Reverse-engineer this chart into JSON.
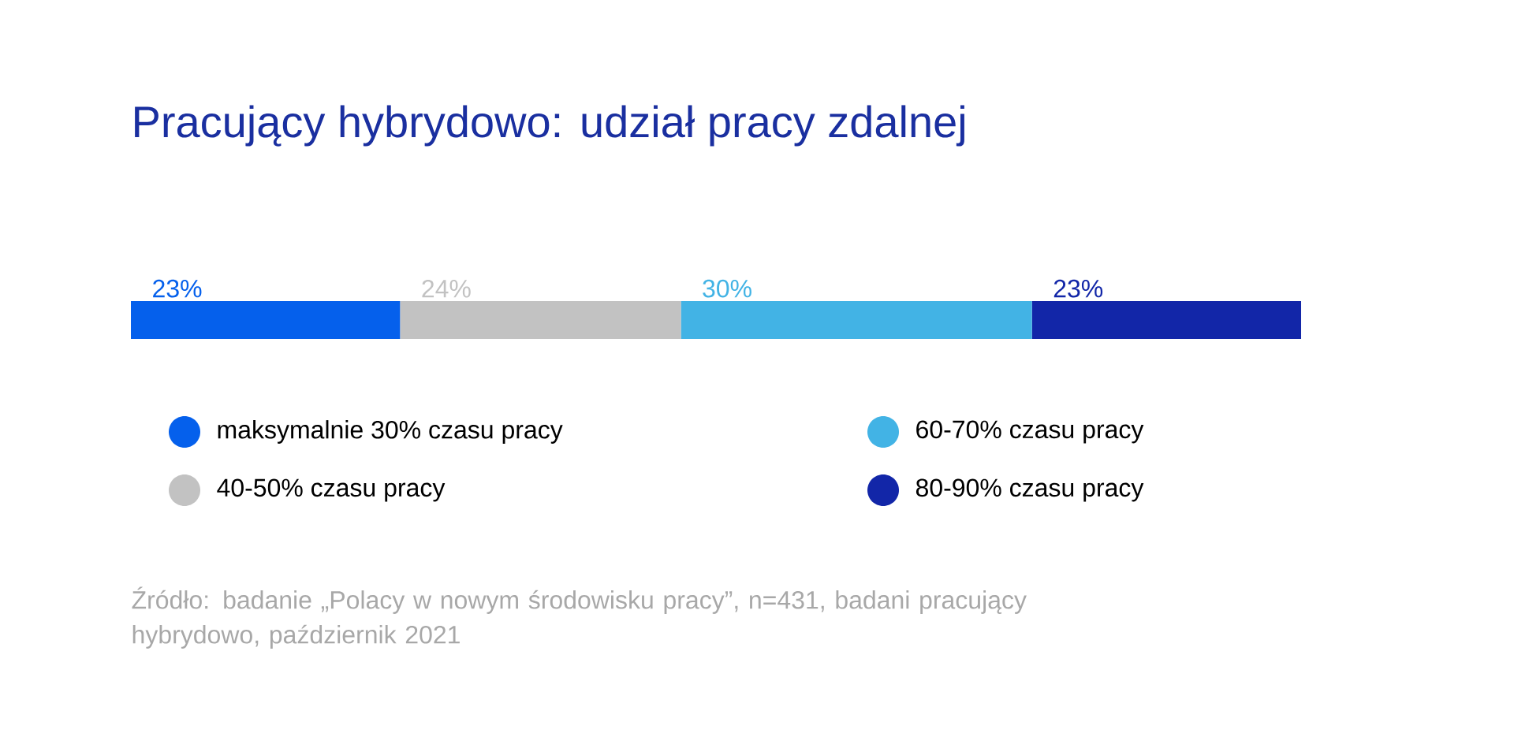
{
  "chart_data": {
    "type": "bar",
    "orientation": "horizontal",
    "stacked": true,
    "title": "Pracujący hybrydowo: udział pracy zdalnej",
    "categories": [
      null
    ],
    "series": [
      {
        "name": "maksymalnie 30% czasu pracy",
        "color": "#0560ec",
        "values": [
          23
        ],
        "value_labels": [
          "23%"
        ]
      },
      {
        "name": "40-50% czasu pracy",
        "color": "#c2c2c2",
        "values": [
          24
        ],
        "value_labels": [
          "24%"
        ]
      },
      {
        "name": "60-70% czasu pracy",
        "color": "#42b3e5",
        "values": [
          30
        ],
        "value_labels": [
          "30%"
        ]
      },
      {
        "name": "80-90% czasu pracy",
        "color": "#1226a8",
        "values": [
          23
        ],
        "value_labels": [
          "23%"
        ]
      }
    ],
    "legend": "bottom",
    "tick_labels": false,
    "annotations": [
      "Źródło: badanie „Polacy w nowym środowisku pracy”, n=431, badani pracujący hybrydowo, październik 2021"
    ]
  }
}
